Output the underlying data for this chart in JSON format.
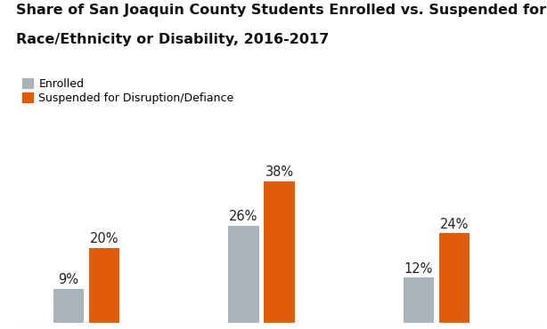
{
  "title_line1": "Share of San Joaquin County Students Enrolled vs. Suspended for Defiance by",
  "title_line2": "Race/Ethnicity or Disability, 2016-2017",
  "enrolled_values": [
    9,
    26,
    12
  ],
  "suspended_values": [
    20,
    38,
    24
  ],
  "enrolled_labels": [
    "9%",
    "26%",
    "12%"
  ],
  "suspended_labels": [
    "20%",
    "38%",
    "24%"
  ],
  "enrolled_color": "#a9b4bb",
  "suspended_color": "#e05c0a",
  "legend_enrolled": "Enrolled",
  "legend_suspended": "Suspended for Disruption/Defiance",
  "bar_width": 0.35,
  "group_positions": [
    1,
    3,
    5
  ],
  "ylim": [
    0,
    46
  ],
  "xlim": [
    0.2,
    6.2
  ],
  "background_color": "#ffffff",
  "title_fontsize": 11.5,
  "label_fontsize": 10.5
}
